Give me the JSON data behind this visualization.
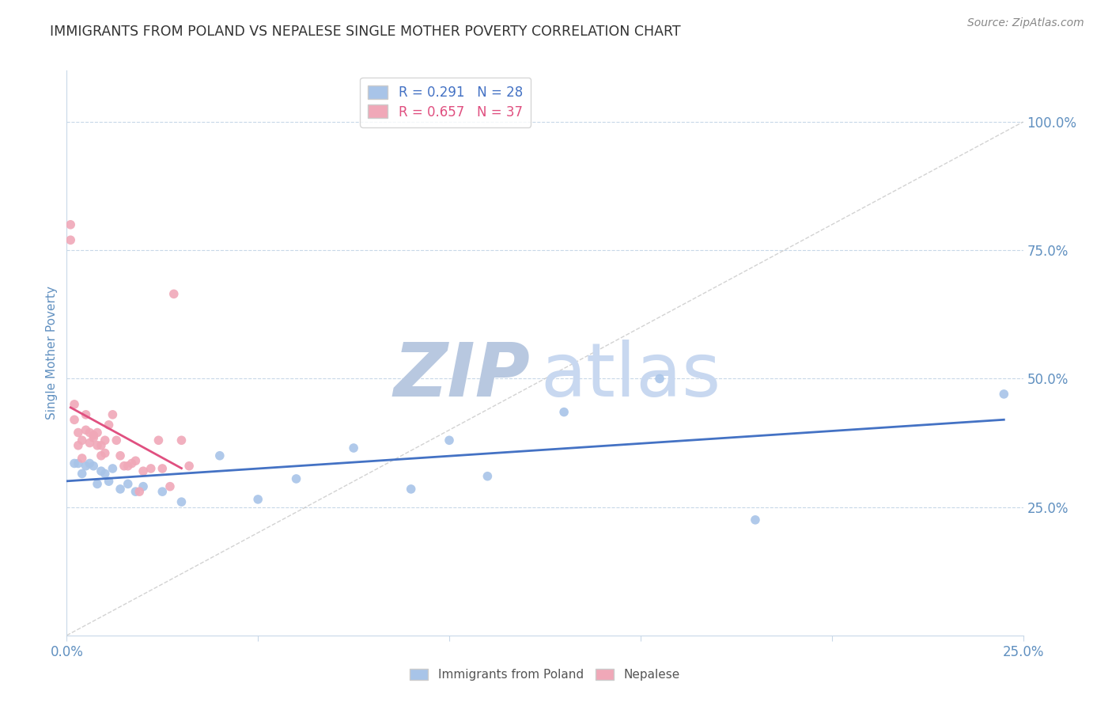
{
  "title": "IMMIGRANTS FROM POLAND VS NEPALESE SINGLE MOTHER POVERTY CORRELATION CHART",
  "source": "Source: ZipAtlas.com",
  "ylabel": "Single Mother Poverty",
  "ytick_labels": [
    "100.0%",
    "75.0%",
    "50.0%",
    "25.0%"
  ],
  "ytick_values": [
    1.0,
    0.75,
    0.5,
    0.25
  ],
  "xlim": [
    0.0,
    0.25
  ],
  "ylim": [
    0.0,
    1.1
  ],
  "r_poland": 0.291,
  "n_poland": 28,
  "r_nepalese": 0.657,
  "n_nepalese": 37,
  "color_poland": "#a8c4e8",
  "color_nepalese": "#f0a8b8",
  "color_poland_line": "#4472c4",
  "color_nepalese_line": "#e05080",
  "watermark_zip_color": "#b8c8e0",
  "watermark_atlas_color": "#c8d8f0",
  "title_color": "#333333",
  "axis_color": "#6090c0",
  "grid_color": "#c8d8e8",
  "poland_x": [
    0.002,
    0.003,
    0.004,
    0.005,
    0.006,
    0.007,
    0.008,
    0.009,
    0.01,
    0.011,
    0.012,
    0.014,
    0.016,
    0.018,
    0.02,
    0.025,
    0.03,
    0.04,
    0.05,
    0.06,
    0.075,
    0.09,
    0.1,
    0.11,
    0.13,
    0.155,
    0.18,
    0.245
  ],
  "poland_y": [
    0.335,
    0.335,
    0.315,
    0.33,
    0.335,
    0.33,
    0.295,
    0.32,
    0.315,
    0.3,
    0.325,
    0.285,
    0.295,
    0.28,
    0.29,
    0.28,
    0.26,
    0.35,
    0.265,
    0.305,
    0.365,
    0.285,
    0.38,
    0.31,
    0.435,
    0.5,
    0.225,
    0.47
  ],
  "nepalese_x": [
    0.001,
    0.001,
    0.002,
    0.002,
    0.003,
    0.003,
    0.004,
    0.004,
    0.005,
    0.005,
    0.006,
    0.006,
    0.007,
    0.007,
    0.008,
    0.008,
    0.009,
    0.009,
    0.01,
    0.01,
    0.011,
    0.012,
    0.013,
    0.014,
    0.015,
    0.016,
    0.017,
    0.018,
    0.019,
    0.02,
    0.022,
    0.024,
    0.025,
    0.027,
    0.028,
    0.03,
    0.032
  ],
  "nepalese_y": [
    0.8,
    0.77,
    0.45,
    0.42,
    0.395,
    0.37,
    0.345,
    0.38,
    0.43,
    0.4,
    0.395,
    0.375,
    0.39,
    0.385,
    0.395,
    0.37,
    0.37,
    0.35,
    0.38,
    0.355,
    0.41,
    0.43,
    0.38,
    0.35,
    0.33,
    0.33,
    0.335,
    0.34,
    0.28,
    0.32,
    0.325,
    0.38,
    0.325,
    0.29,
    0.665,
    0.38,
    0.33
  ],
  "nep_line_x0": 0.001,
  "nep_line_x1": 0.03,
  "poland_line_x0": 0.0,
  "poland_line_x1": 0.245
}
